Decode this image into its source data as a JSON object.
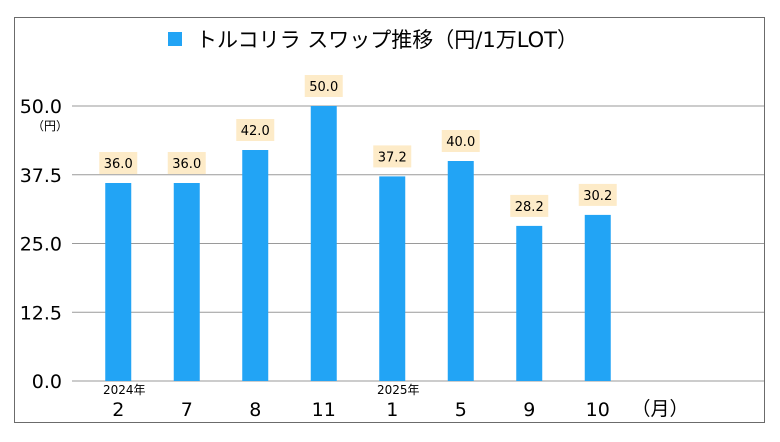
{
  "chart_data": {
    "type": "bar",
    "title": "",
    "legend": {
      "label": "トルコリラ スワップ推移（円/1万LOT）",
      "color": "#22a4f5",
      "position": "top"
    },
    "y_unit": "（円）",
    "x_unit": "（月）",
    "ylim": [
      0,
      50
    ],
    "yticks": [
      "0.0",
      "12.5",
      "25.0",
      "37.5",
      "50.0"
    ],
    "categories": [
      "2",
      "7",
      "8",
      "11",
      "1",
      "5",
      "9",
      "10"
    ],
    "year_markers": [
      {
        "category_index": 0,
        "label": "2024年"
      },
      {
        "category_index": 4,
        "label": "2025年"
      }
    ],
    "values": [
      36.0,
      36.0,
      42.0,
      50.0,
      37.2,
      40.0,
      28.2,
      30.2
    ],
    "data_labels": [
      "36.0",
      "36.0",
      "42.0",
      "50.0",
      "37.2",
      "40.0",
      "28.2",
      "30.2"
    ],
    "bar_color": "#22a4f5",
    "grid": true
  }
}
